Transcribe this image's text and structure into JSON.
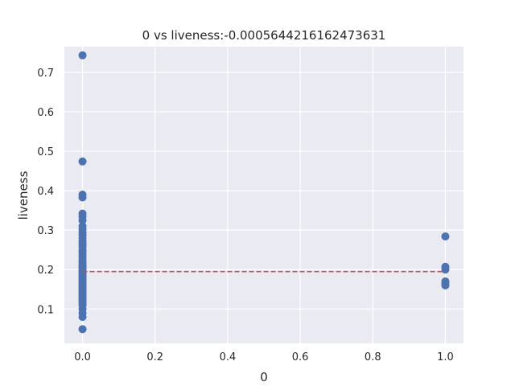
{
  "chart_data": {
    "type": "scatter",
    "title": "0 vs liveness:-0.0005644216162473631",
    "xlabel": "0",
    "ylabel": "liveness",
    "xlim": [
      -0.05,
      1.05
    ],
    "ylim": [
      0.013,
      0.765
    ],
    "xticks": [
      "0.0",
      "0.2",
      "0.4",
      "0.6",
      "0.8",
      "1.0"
    ],
    "yticks": [
      "0.1",
      "0.2",
      "0.3",
      "0.4",
      "0.5",
      "0.6",
      "0.7"
    ],
    "grid": true,
    "background": "#eaeaf2",
    "point_color": "#4c72b0",
    "fit_line_color": "#c44e52",
    "fit_line": {
      "x": [
        0,
        1
      ],
      "y": [
        0.195,
        0.195
      ],
      "style": "dashed"
    },
    "series": [
      {
        "x": [
          0,
          0,
          0,
          0,
          0,
          0,
          0,
          0,
          0,
          0,
          0,
          0,
          0,
          0,
          0,
          0,
          0,
          0,
          0,
          0,
          0,
          0,
          0,
          0,
          0,
          0,
          0,
          0,
          0,
          0,
          0,
          0,
          0,
          0,
          0,
          0,
          0,
          0,
          0,
          0,
          0,
          0,
          0,
          0,
          0,
          0,
          0,
          0,
          0,
          0,
          0,
          1,
          1,
          1,
          1,
          1,
          1
        ],
        "y": [
          0.743,
          0.474,
          0.39,
          0.383,
          0.342,
          0.335,
          0.325,
          0.31,
          0.302,
          0.295,
          0.288,
          0.28,
          0.272,
          0.265,
          0.258,
          0.25,
          0.245,
          0.238,
          0.232,
          0.225,
          0.22,
          0.215,
          0.21,
          0.205,
          0.2,
          0.196,
          0.192,
          0.188,
          0.184,
          0.18,
          0.176,
          0.172,
          0.168,
          0.164,
          0.16,
          0.156,
          0.152,
          0.148,
          0.144,
          0.14,
          0.136,
          0.132,
          0.128,
          0.124,
          0.12,
          0.115,
          0.11,
          0.1,
          0.09,
          0.08,
          0.049,
          0.284,
          0.207,
          0.2,
          0.17,
          0.165,
          0.16
        ]
      }
    ]
  }
}
